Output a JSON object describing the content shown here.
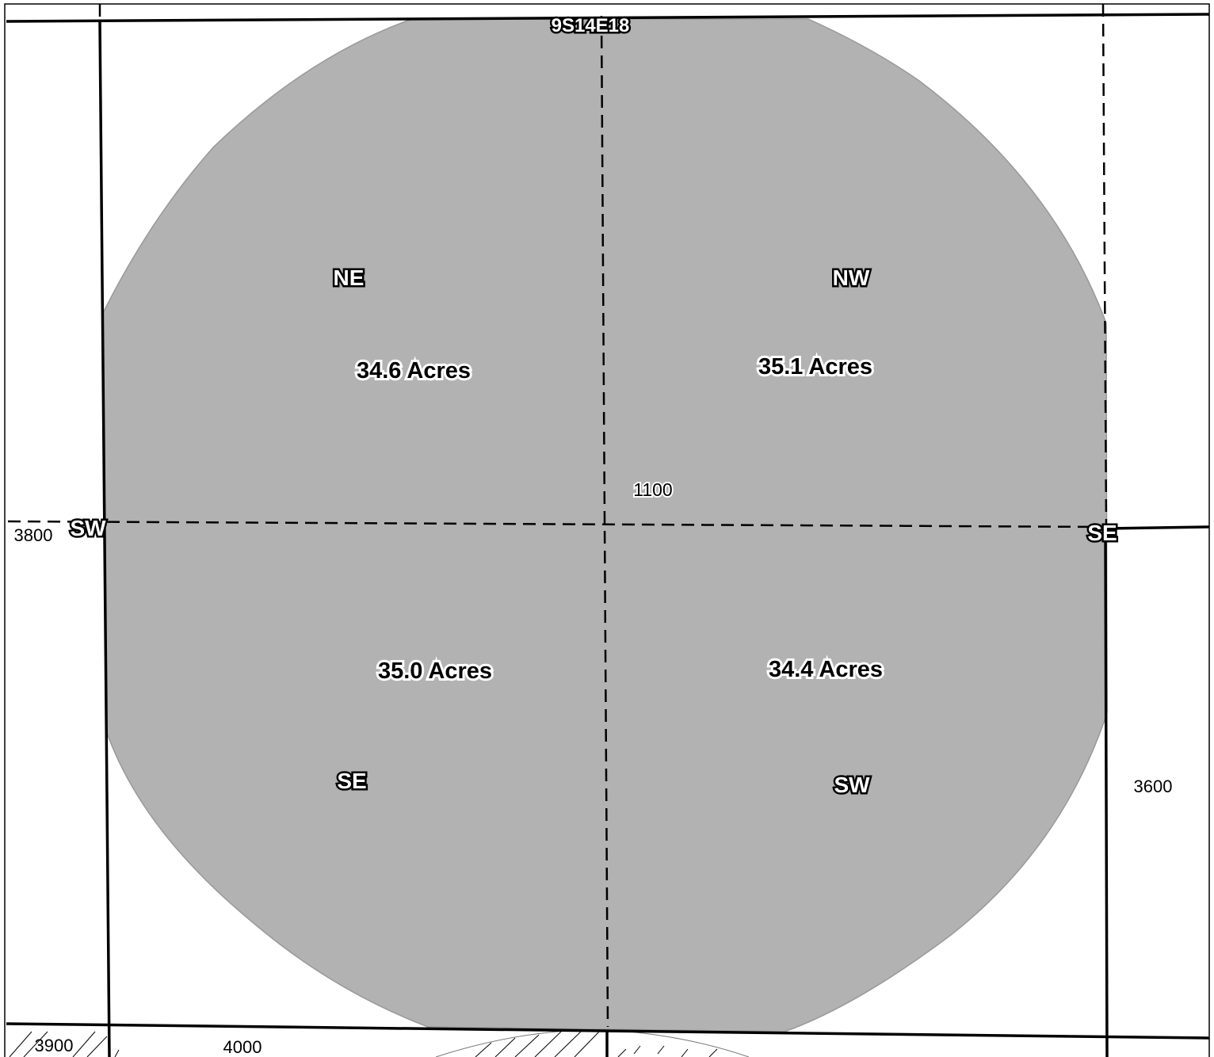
{
  "map": {
    "section_label": "9S14E18",
    "parcel_number": "1100",
    "quarters": [
      {
        "name": "NE",
        "acres": "34.6 Acres"
      },
      {
        "name": "NW",
        "acres": "35.1 Acres"
      },
      {
        "name": "SE",
        "acres": "35.0 Acres"
      },
      {
        "name": "SW",
        "acres": "34.4 Acres"
      }
    ],
    "edge_labels": {
      "west": "SW",
      "east": "SE"
    },
    "adjacent_parcels": {
      "west": "3800",
      "east": "3600",
      "bottom_left": "3900",
      "bottom_mid": "4000"
    },
    "colors": {
      "parcel_fill": "#b2b2b2",
      "line": "#000000",
      "background": "#ffffff"
    }
  }
}
